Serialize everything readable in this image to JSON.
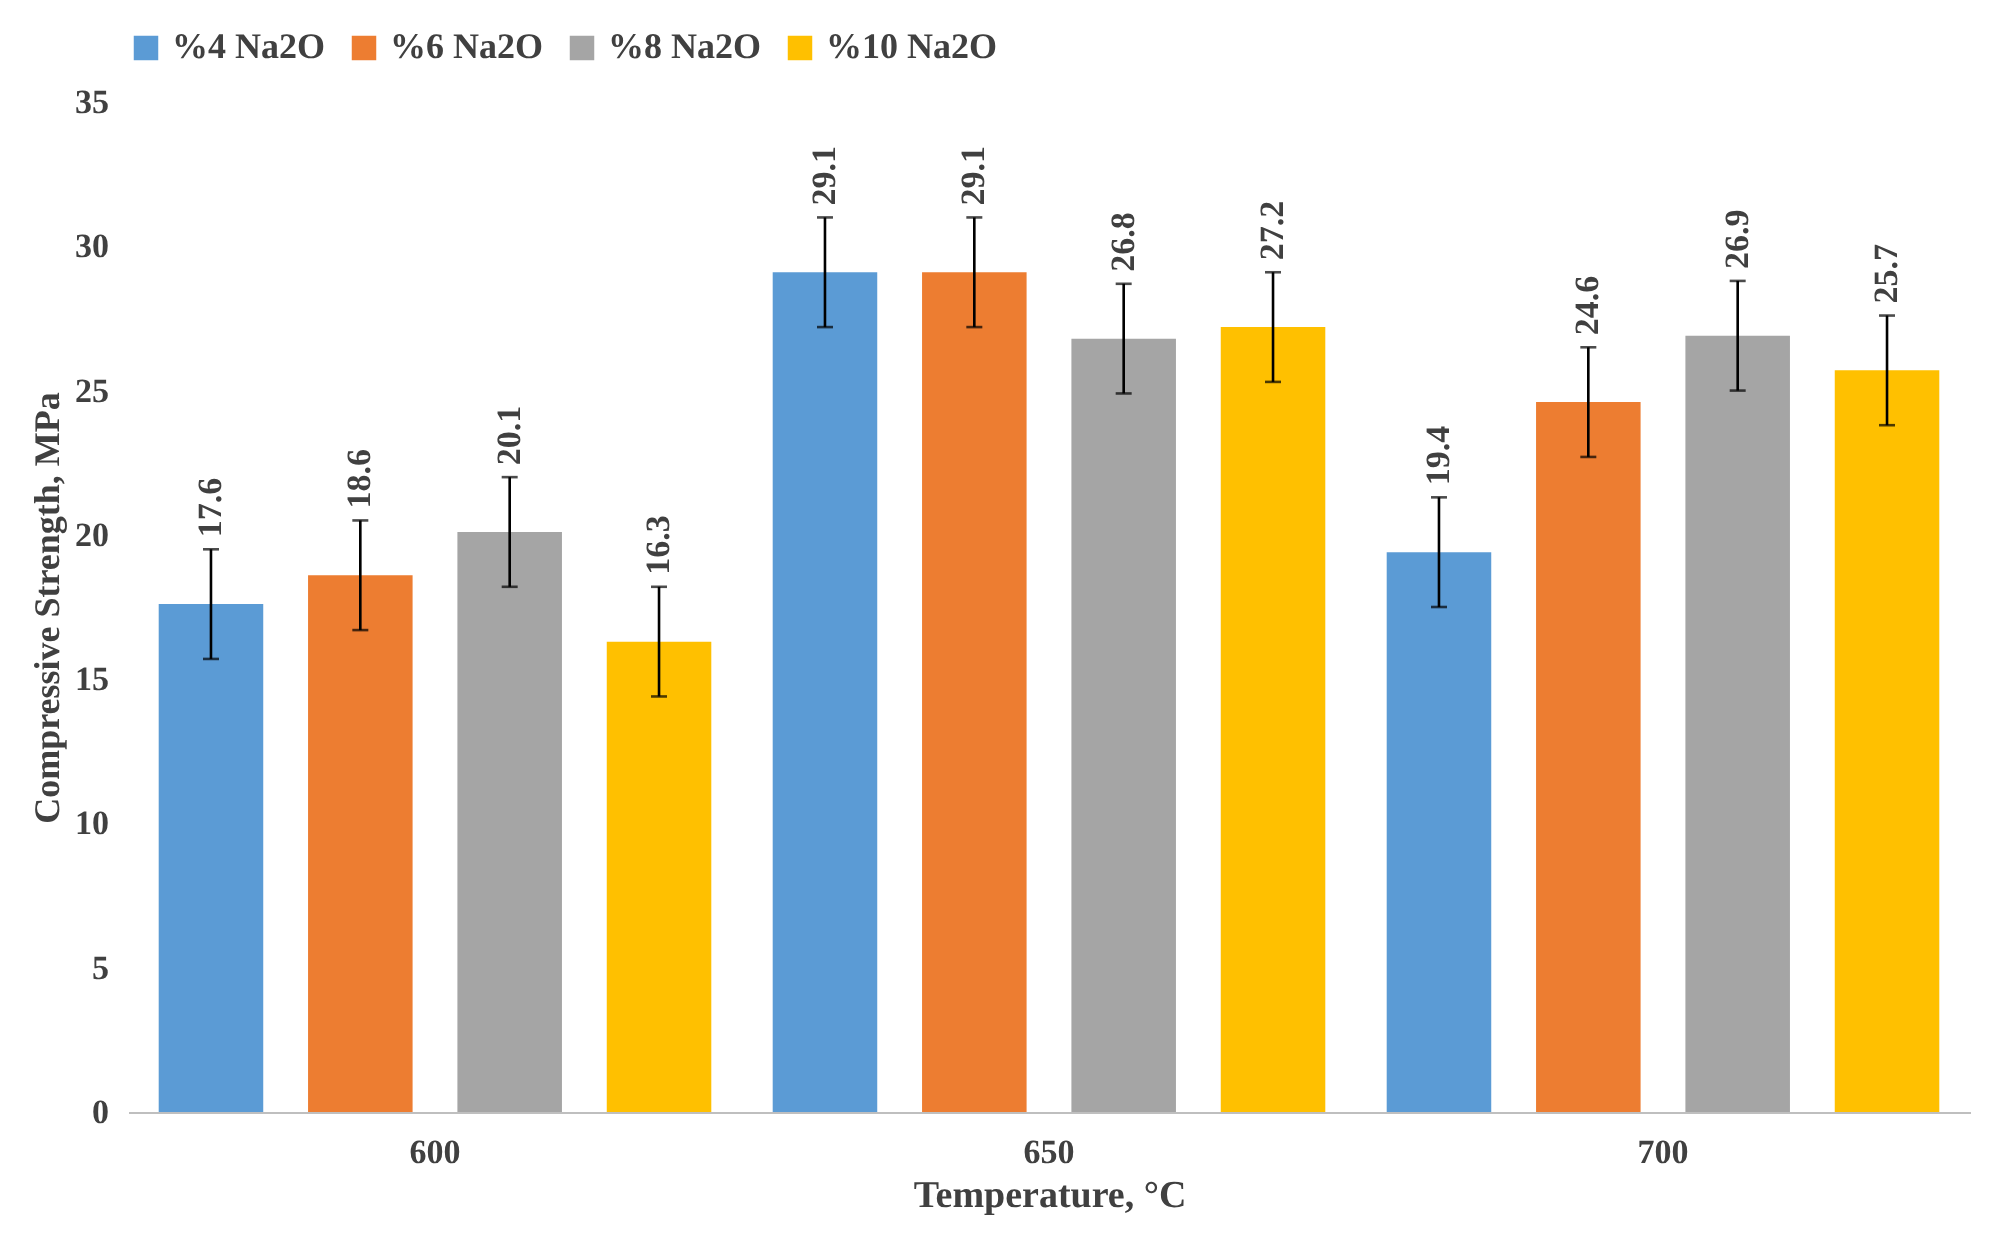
{
  "chart_data": {
    "type": "bar",
    "xlabel": "Temperature, °C",
    "ylabel": "Compressive Strength, MPa",
    "categories": [
      "600",
      "650",
      "700"
    ],
    "series": [
      {
        "name": "%4 Na2O",
        "color": "#5b9bd5",
        "values": [
          17.6,
          29.1,
          19.4
        ],
        "errors": [
          1.9,
          1.9,
          1.9
        ]
      },
      {
        "name": "%6 Na2O",
        "color": "#ed7d31",
        "values": [
          18.6,
          29.1,
          24.6
        ],
        "errors": [
          1.9,
          1.9,
          1.9
        ]
      },
      {
        "name": "%8 Na2O",
        "color": "#a5a5a5",
        "values": [
          20.1,
          26.8,
          26.9
        ],
        "errors": [
          1.9,
          1.9,
          1.9
        ]
      },
      {
        "name": "%10 Na2O",
        "color": "#ffc000",
        "values": [
          16.3,
          27.2,
          25.7
        ],
        "errors": [
          1.9,
          1.9,
          1.9
        ]
      }
    ],
    "ylim": [
      0,
      35
    ],
    "yticks": [
      0,
      5,
      10,
      15,
      20,
      25,
      30,
      35
    ],
    "data_labels": true,
    "grid": false,
    "legend": "top"
  }
}
